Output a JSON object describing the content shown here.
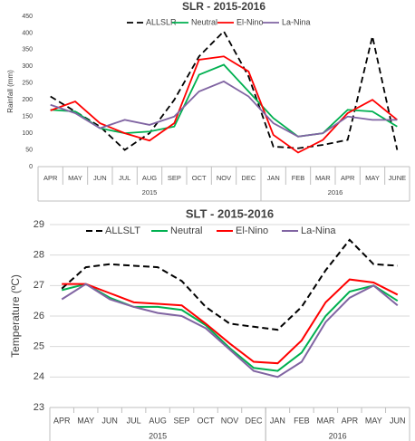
{
  "chart_data": [
    {
      "type": "line",
      "title": "SLR  - 2015-2016",
      "ylabel": "Rainfall (mm)",
      "categories": [
        "APR",
        "MAY",
        "JUN",
        "JUL",
        "AUG",
        "SEP",
        "OCT",
        "NOV",
        "DEC",
        "JAN",
        "FEB",
        "MAR",
        "APR",
        "MAY",
        "JUNE"
      ],
      "x_groups": [
        {
          "label": "2015",
          "count": 9
        },
        {
          "label": "2016",
          "count": 6
        }
      ],
      "ylim": [
        0,
        450
      ],
      "yticks": [
        0,
        50,
        100,
        150,
        200,
        250,
        300,
        350,
        400,
        450
      ],
      "grid": false,
      "legend": "top",
      "series": [
        {
          "name": "ALLSLR",
          "color": "#000000",
          "style": "dashed",
          "values": [
            210,
            165,
            120,
            50,
            100,
            200,
            330,
            405,
            270,
            60,
            55,
            65,
            80,
            390,
            50
          ]
        },
        {
          "name": "Neutral",
          "color": "#00b050",
          "style": "solid",
          "values": [
            170,
            165,
            115,
            100,
            105,
            120,
            275,
            305,
            225,
            145,
            90,
            100,
            170,
            165,
            120
          ]
        },
        {
          "name": "El-Nino",
          "color": "#ff0000",
          "style": "solid",
          "values": [
            168,
            195,
            130,
            100,
            78,
            130,
            320,
            330,
            285,
            95,
            42,
            80,
            160,
            200,
            140
          ]
        },
        {
          "name": "La-Nina",
          "color": "#8064a2",
          "style": "solid",
          "values": [
            185,
            160,
            115,
            140,
            125,
            150,
            225,
            255,
            210,
            130,
            90,
            100,
            150,
            140,
            140
          ]
        }
      ]
    },
    {
      "type": "line",
      "title": "SLT  - 2015-2016",
      "ylabel": "Temperature (ºC)",
      "categories": [
        "APR",
        "MAY",
        "JUN",
        "JUL",
        "AUG",
        "SEP",
        "OCT",
        "NOV",
        "DEC",
        "JAN",
        "FEB",
        "MAR",
        "APR",
        "MAY",
        "JUN"
      ],
      "x_groups": [
        {
          "label": "2015",
          "count": 9
        },
        {
          "label": "2016",
          "count": 6
        }
      ],
      "ylim": [
        23,
        29
      ],
      "yticks": [
        23,
        24,
        25,
        26,
        27,
        28,
        29
      ],
      "grid": true,
      "legend": "top",
      "series": [
        {
          "name": "ALLSLT",
          "color": "#000000",
          "style": "dashed",
          "values": [
            26.9,
            27.6,
            27.7,
            27.65,
            27.6,
            27.15,
            26.3,
            25.75,
            25.65,
            25.55,
            26.3,
            27.5,
            28.5,
            27.7,
            27.65
          ]
        },
        {
          "name": "Neutral",
          "color": "#00b050",
          "style": "solid",
          "values": [
            26.85,
            27.05,
            26.6,
            26.3,
            26.3,
            26.2,
            25.7,
            24.95,
            24.3,
            24.2,
            24.8,
            26.0,
            26.8,
            27.0,
            26.5
          ]
        },
        {
          "name": "El-Nino",
          "color": "#ff0000",
          "style": "solid",
          "values": [
            27.05,
            27.05,
            26.75,
            26.45,
            26.4,
            26.35,
            25.75,
            25.1,
            24.5,
            24.45,
            25.2,
            26.45,
            27.2,
            27.1,
            26.7
          ]
        },
        {
          "name": "La-Nina",
          "color": "#8064a2",
          "style": "solid",
          "values": [
            26.55,
            27.05,
            26.55,
            26.3,
            26.1,
            26.0,
            25.6,
            24.9,
            24.2,
            24.0,
            24.5,
            25.8,
            26.6,
            27.0,
            26.35
          ]
        }
      ]
    }
  ]
}
